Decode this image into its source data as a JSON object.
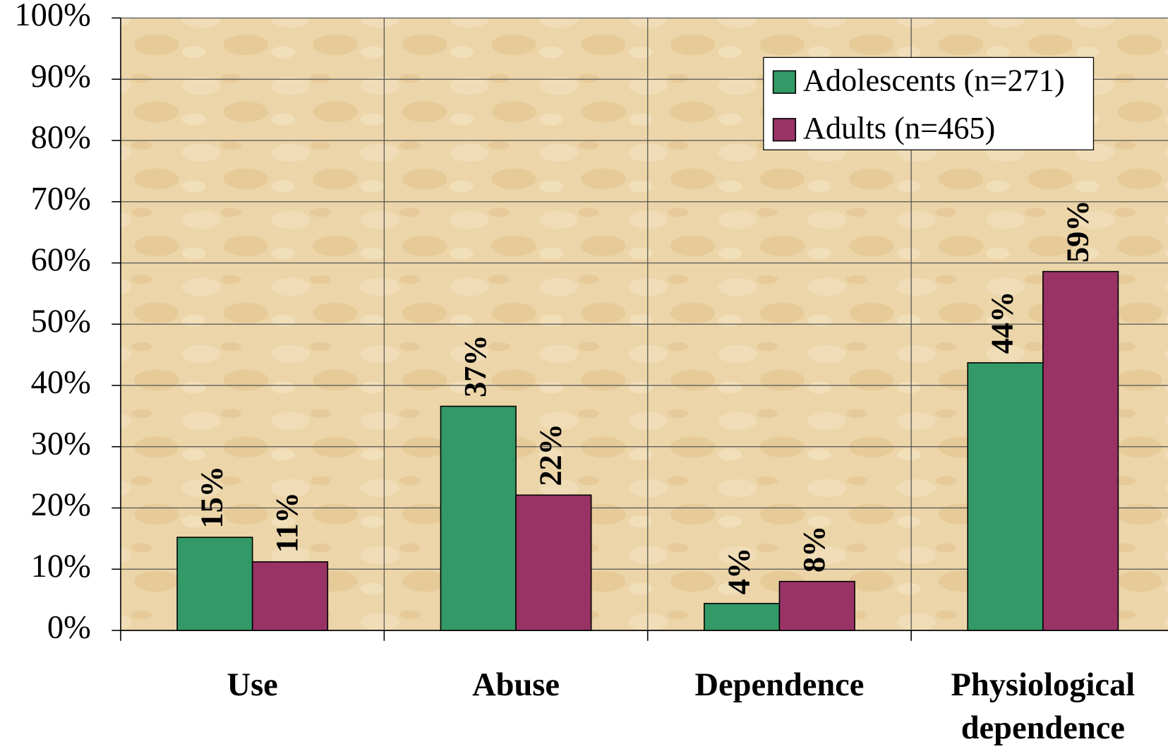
{
  "chart_data": {
    "type": "bar",
    "categories": [
      "Use",
      "Abuse",
      "Dependence",
      "Physiological dependence"
    ],
    "series": [
      {
        "name": "Adolescents (n=271)",
        "color": "#339966",
        "values": [
          15.2,
          36.6,
          4.4,
          43.7
        ],
        "value_labels": [
          "15%",
          "37%",
          "4%",
          "44%"
        ]
      },
      {
        "name": "Adults (n=465)",
        "color": "#993366",
        "values": [
          11.2,
          22.1,
          8.0,
          58.6
        ],
        "value_labels": [
          "11%",
          "22%",
          "8%",
          "59%"
        ]
      }
    ],
    "ylim": [
      0,
      100
    ],
    "yticks": [
      {
        "value": 0,
        "label": "0%"
      },
      {
        "value": 10,
        "label": "10%"
      },
      {
        "value": 20,
        "label": "20%"
      },
      {
        "value": 30,
        "label": "30%"
      },
      {
        "value": 40,
        "label": "40%"
      },
      {
        "value": 50,
        "label": "50%"
      },
      {
        "value": 60,
        "label": "60%"
      },
      {
        "value": 70,
        "label": "70%"
      },
      {
        "value": 80,
        "label": "80%"
      },
      {
        "value": 90,
        "label": "90%"
      },
      {
        "value": 100,
        "label": "100%"
      }
    ],
    "grid": true,
    "legend": "upper right"
  }
}
